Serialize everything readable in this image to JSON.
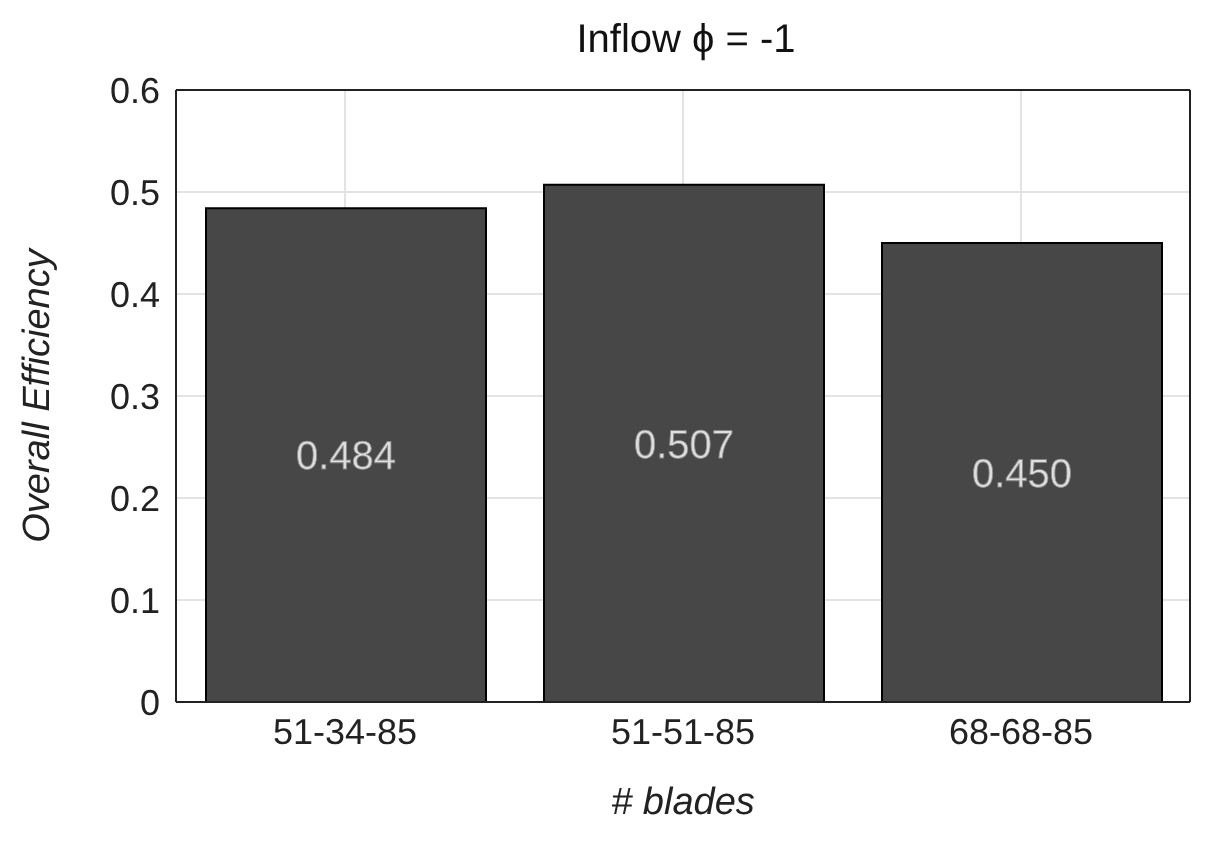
{
  "chart_data": {
    "type": "bar",
    "title": "Inflow ϕ = -1",
    "xlabel": "# blades",
    "ylabel": "Overall Efficiency",
    "categories": [
      "51-34-85",
      "51-51-85",
      "68-68-85"
    ],
    "values": [
      0.484,
      0.507,
      0.45
    ],
    "value_labels": [
      "0.484",
      "0.507",
      "0.450"
    ],
    "color": "#474747",
    "ylim": [
      0,
      0.6
    ],
    "yticks": [
      0,
      0.1,
      0.2,
      0.3,
      0.4,
      0.5,
      0.6
    ],
    "grid": true
  }
}
